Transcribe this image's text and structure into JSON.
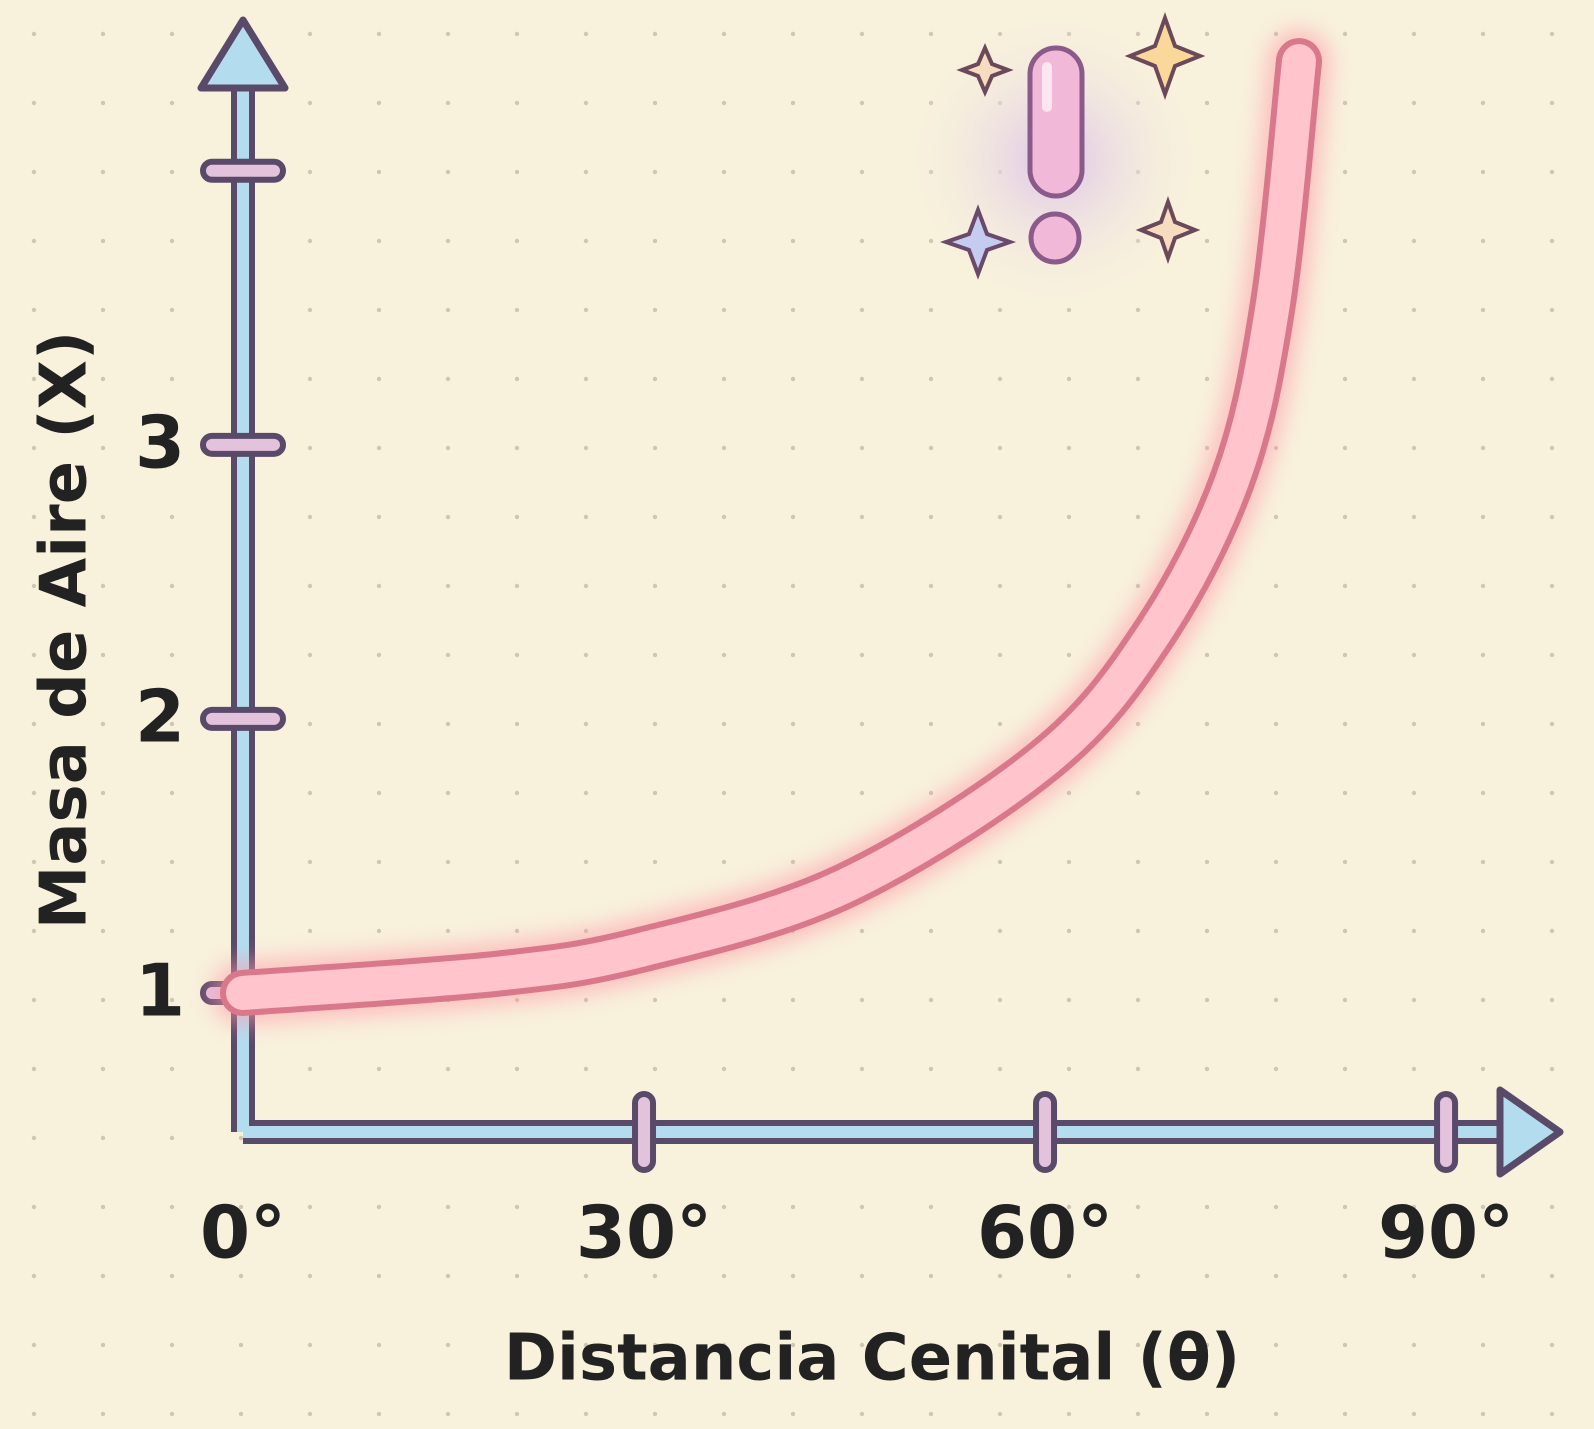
{
  "chart_data": {
    "type": "line",
    "x_label": "Distancia Cenital (θ)",
    "y_label": "Masa de Aire (X)",
    "x": [
      0,
      19,
      30,
      45,
      60,
      68,
      74,
      77,
      79
    ],
    "series": [
      {
        "color": "#ffc4cc",
        "values": [
          1,
          1.07,
          1.16,
          1.39,
          1.85,
          2.3,
          2.87,
          3.5,
          4.4
        ]
      }
    ],
    "xlim": [
      0,
      98
    ],
    "ylim": [
      0.5,
      4.55
    ],
    "xticks": [
      {
        "value": 0,
        "label": "0°"
      },
      {
        "value": 30,
        "label": "30°"
      },
      {
        "value": 60,
        "label": "60°"
      },
      {
        "value": 90,
        "label": "90°"
      }
    ],
    "yticks": [
      1,
      2,
      3,
      {
        "value": 4,
        "label": null
      }
    ]
  }
}
